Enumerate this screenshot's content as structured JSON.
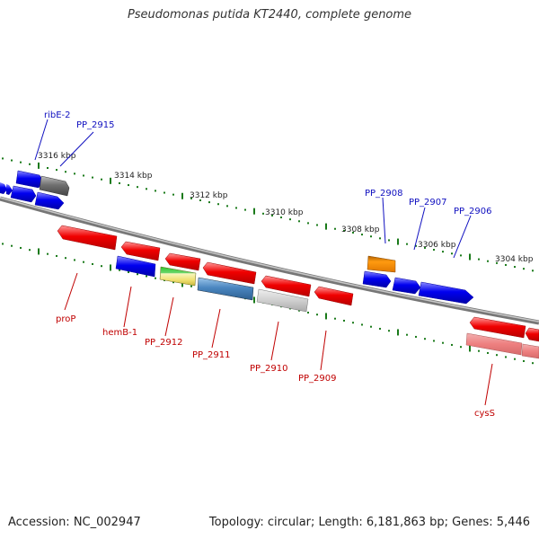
{
  "title": "Pseudomonas putida KT2440, complete genome",
  "accession": "Accession: NC_002947",
  "summary": "Topology: circular; Length: 6,181,863 bp; Genes: 5,446",
  "ticks": [
    "3316 kbp",
    "3314 kbp",
    "3312 kbp",
    "3310 kbp",
    "3308 kbp",
    "3306 kbp",
    "3304 kbp"
  ],
  "forward_labels": [
    "ribE-2",
    "PP_2915",
    "PP_2908",
    "PP_2907",
    "PP_2906"
  ],
  "reverse_labels": [
    "proP",
    "hemB-1",
    "PP_2912",
    "PP_2911",
    "PP_2910",
    "PP_2909",
    "cysS"
  ],
  "colors": {
    "forward_gene": "#0000ee",
    "reverse_gene": "#ee0000",
    "backbone": "#888888",
    "tick": "#1a7a1a",
    "forward_label": "#1010c0",
    "reverse_label": "#c00000"
  }
}
